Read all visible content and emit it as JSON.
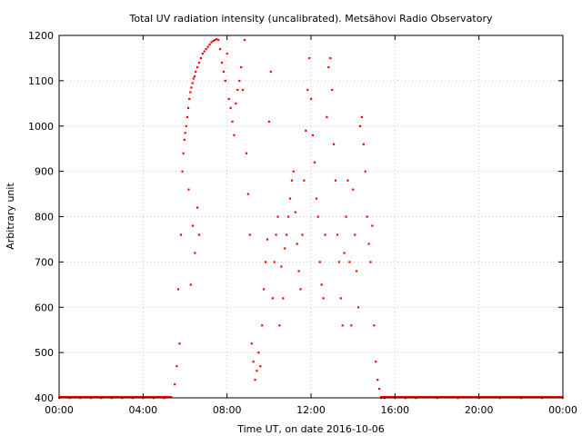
{
  "chart_data": {
    "type": "scatter",
    "title": "Total UV radiation intensity (uncalibrated). Metsähovi Radio Observatory",
    "xlabel": "Time UT, on date 2016-10-06",
    "ylabel": "Arbitrary unit",
    "xlim": [
      "00:00",
      "24:00"
    ],
    "ylim": [
      400,
      1200
    ],
    "x_ticks": [
      "00:00",
      "04:00",
      "08:00",
      "12:00",
      "16:00",
      "20:00",
      "00:00"
    ],
    "y_ticks": [
      400,
      500,
      600,
      700,
      800,
      900,
      1000,
      1100,
      1200
    ],
    "grid": true,
    "marker_color": "#ff0000",
    "series": [
      {
        "x": [
          "00:00",
          "00:30",
          "01:00",
          "01:30",
          "02:00",
          "02:30",
          "03:00",
          "03:30",
          "04:00",
          "04:30",
          "05:00",
          "05:20",
          "05:30",
          "05:36",
          "05:40",
          "05:44",
          "05:48",
          "05:52",
          "05:55",
          "05:58",
          "06:00",
          "06:03",
          "06:06",
          "06:09",
          "06:12",
          "06:15",
          "06:18",
          "06:21",
          "06:24",
          "06:27",
          "06:30",
          "06:35",
          "06:40",
          "06:45",
          "06:50",
          "06:55",
          "07:00",
          "07:05",
          "07:10",
          "07:15",
          "07:20",
          "07:25",
          "07:30",
          "07:35",
          "06:10",
          "06:16",
          "06:22",
          "06:28",
          "06:35",
          "06:40",
          "07:40",
          "07:45",
          "07:50",
          "07:55",
          "08:00",
          "08:05",
          "08:10",
          "08:15",
          "08:20",
          "08:25",
          "08:30",
          "08:35",
          "08:40",
          "08:45",
          "08:50",
          "08:55",
          "09:00",
          "09:05",
          "09:10",
          "09:15",
          "09:20",
          "09:25",
          "09:30",
          "09:35",
          "09:40",
          "09:45",
          "09:50",
          "09:55",
          "10:00",
          "10:05",
          "10:10",
          "10:15",
          "10:20",
          "10:25",
          "10:30",
          "10:35",
          "10:40",
          "10:45",
          "10:50",
          "10:55",
          "11:00",
          "11:05",
          "11:10",
          "11:15",
          "11:20",
          "11:25",
          "11:30",
          "11:35",
          "11:40",
          "11:45",
          "11:50",
          "11:55",
          "12:00",
          "12:05",
          "12:10",
          "12:15",
          "12:20",
          "12:25",
          "12:30",
          "12:35",
          "12:40",
          "12:45",
          "12:50",
          "12:55",
          "13:00",
          "13:05",
          "13:10",
          "13:15",
          "13:20",
          "13:25",
          "13:30",
          "13:35",
          "13:40",
          "13:45",
          "13:50",
          "13:55",
          "14:00",
          "14:05",
          "14:10",
          "14:15",
          "14:20",
          "14:25",
          "14:30",
          "14:35",
          "14:40",
          "14:45",
          "14:50",
          "14:55",
          "15:00",
          "15:05",
          "15:10",
          "15:15",
          "15:20",
          "15:30",
          "16:00",
          "16:30",
          "17:00",
          "18:00",
          "19:00",
          "20:00",
          "21:00",
          "22:00",
          "23:00",
          "23:59"
        ],
        "y": [
          400,
          400,
          400,
          400,
          400,
          400,
          400,
          400,
          400,
          400,
          400,
          402,
          430,
          470,
          640,
          520,
          760,
          900,
          940,
          970,
          985,
          1000,
          1020,
          1040,
          1060,
          1075,
          1085,
          1095,
          1105,
          1110,
          1120,
          1130,
          1140,
          1150,
          1160,
          1165,
          1170,
          1175,
          1180,
          1185,
          1188,
          1190,
          1192,
          1190,
          860,
          650,
          780,
          720,
          820,
          760,
          1170,
          1140,
          1120,
          1100,
          1160,
          1060,
          1040,
          1010,
          980,
          1050,
          1080,
          1100,
          1130,
          1080,
          1190,
          940,
          850,
          760,
          520,
          480,
          440,
          460,
          500,
          470,
          560,
          640,
          700,
          750,
          1010,
          1120,
          620,
          700,
          760,
          800,
          560,
          690,
          620,
          730,
          760,
          800,
          840,
          880,
          900,
          810,
          740,
          680,
          640,
          760,
          880,
          990,
          1080,
          1150,
          1060,
          980,
          920,
          840,
          800,
          700,
          650,
          620,
          760,
          1020,
          1130,
          1150,
          1080,
          960,
          880,
          760,
          700,
          620,
          560,
          720,
          800,
          880,
          700,
          560,
          860,
          760,
          680,
          600,
          1000,
          1020,
          960,
          900,
          800,
          740,
          700,
          780,
          560,
          480,
          440,
          420,
          400,
          400,
          400,
          400,
          400,
          400,
          400,
          400,
          400,
          400,
          400,
          400
        ]
      }
    ]
  }
}
